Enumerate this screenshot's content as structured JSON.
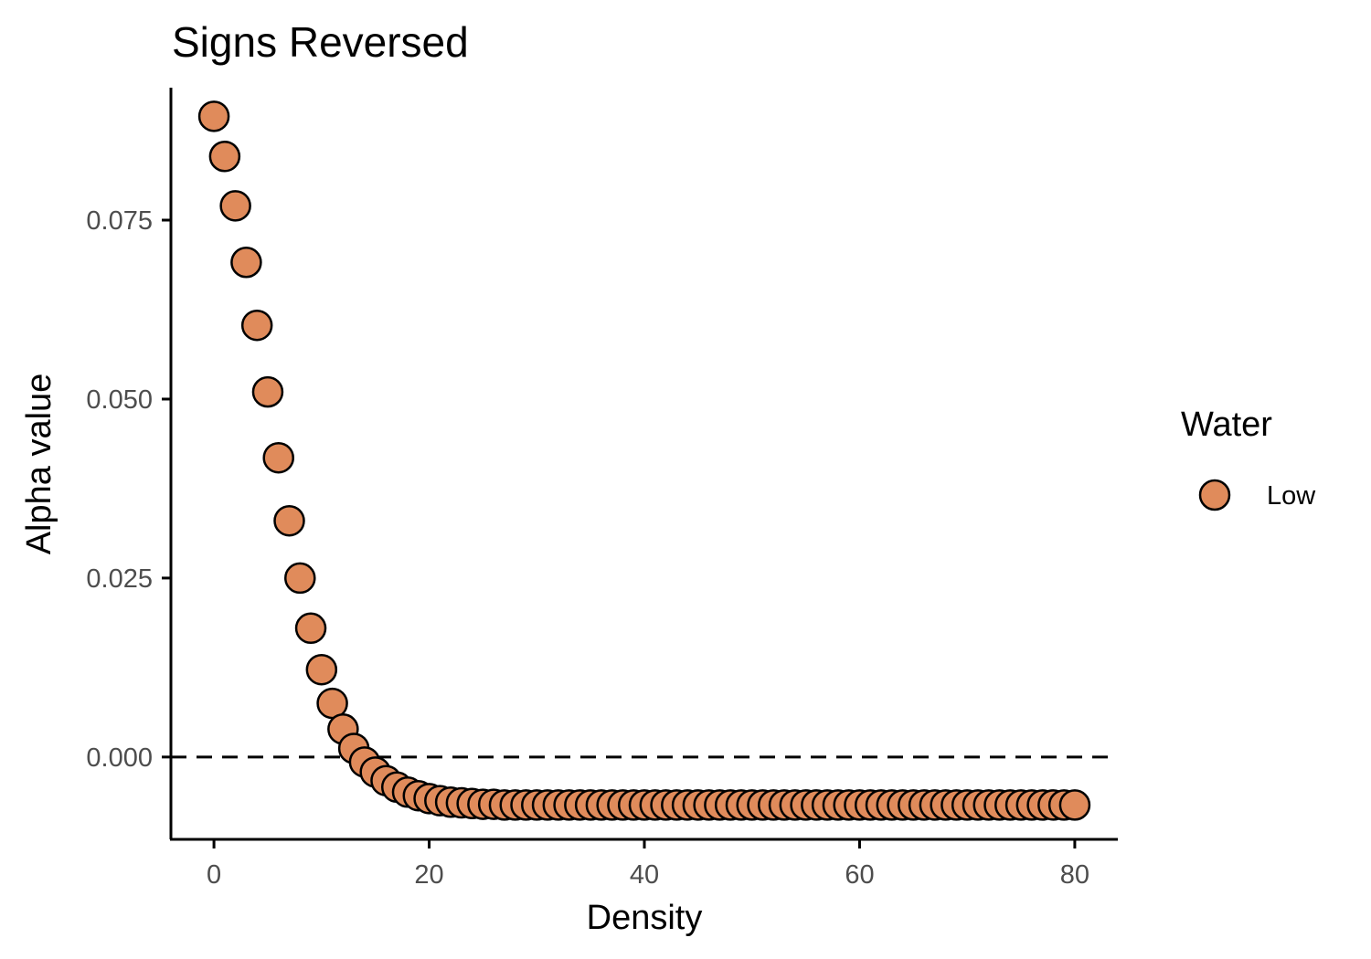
{
  "chart_data": {
    "type": "scatter",
    "title": "Signs Reversed",
    "xlabel": "Density",
    "ylabel": "Alpha value",
    "xlim": [
      -4,
      84
    ],
    "ylim": [
      -0.0115,
      0.0935
    ],
    "x_ticks": [
      0,
      20,
      40,
      60,
      80
    ],
    "x_tick_labels": [
      "0",
      "20",
      "40",
      "60",
      "80"
    ],
    "y_ticks": [
      0.0,
      0.025,
      0.05,
      0.075
    ],
    "y_tick_labels": [
      "0.000",
      "0.025",
      "0.050",
      "0.075"
    ],
    "reference_line": {
      "y": 0,
      "style": "dashed",
      "color": "#000000"
    },
    "grid": false,
    "legend": {
      "title": "Water",
      "position": "right",
      "entries": [
        {
          "label": "Low",
          "color": "#E08B5B"
        }
      ]
    },
    "series": [
      {
        "name": "Low",
        "color": "#E08B5B",
        "x": [
          0,
          1,
          2,
          3,
          4,
          5,
          6,
          7,
          8,
          9,
          10,
          11,
          12,
          13,
          14,
          15,
          16,
          17,
          18,
          19,
          20,
          21,
          22,
          23,
          24,
          25,
          26,
          27,
          28,
          29,
          30,
          31,
          32,
          33,
          34,
          35,
          36,
          37,
          38,
          39,
          40,
          41,
          42,
          43,
          44,
          45,
          46,
          47,
          48,
          49,
          50,
          51,
          52,
          53,
          54,
          55,
          56,
          57,
          58,
          59,
          60,
          61,
          62,
          63,
          64,
          65,
          66,
          67,
          68,
          69,
          70,
          71,
          72,
          73,
          74,
          75,
          76,
          77,
          78,
          79,
          80
        ],
        "y": [
          0.0895,
          0.0839,
          0.077,
          0.0691,
          0.0603,
          0.051,
          0.0418,
          0.033,
          0.025,
          0.018,
          0.0122,
          0.0075,
          0.0039,
          0.0012,
          -0.0007,
          -0.0021,
          -0.0033,
          -0.0042,
          -0.0049,
          -0.0054,
          -0.0058,
          -0.0061,
          -0.0063,
          -0.0064,
          -0.0065,
          -0.0066,
          -0.0066,
          -0.0067,
          -0.0067,
          -0.0067,
          -0.0067,
          -0.0067,
          -0.0067,
          -0.0067,
          -0.0067,
          -0.0067,
          -0.0067,
          -0.0067,
          -0.0067,
          -0.0067,
          -0.0067,
          -0.0067,
          -0.0067,
          -0.0067,
          -0.0067,
          -0.0067,
          -0.0067,
          -0.0067,
          -0.0067,
          -0.0067,
          -0.0067,
          -0.0067,
          -0.0067,
          -0.0067,
          -0.0067,
          -0.0067,
          -0.0067,
          -0.0067,
          -0.0067,
          -0.0067,
          -0.0067,
          -0.0067,
          -0.0067,
          -0.0067,
          -0.0067,
          -0.0067,
          -0.0067,
          -0.0067,
          -0.0067,
          -0.0067,
          -0.0067,
          -0.0067,
          -0.0067,
          -0.0067,
          -0.0067,
          -0.0067,
          -0.0067,
          -0.0067,
          -0.0067,
          -0.0067,
          -0.0067
        ]
      }
    ]
  }
}
